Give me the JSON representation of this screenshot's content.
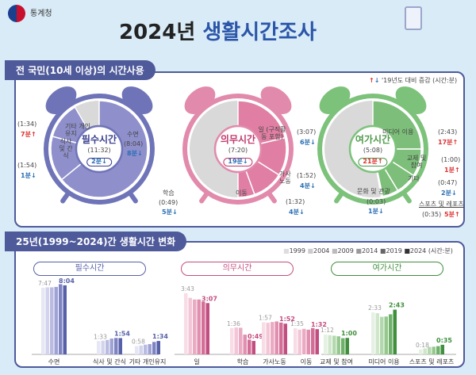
{
  "header": {
    "org": "통계청",
    "title_year": "2024년",
    "title_main": "생활시간조사"
  },
  "section1": {
    "title": "전 국민(10세 이상)의 시간사용",
    "legend": "'19년도 대비 증감 (시간:분)"
  },
  "colors": {
    "essential": "#8f8fcc",
    "obligatory": "#e07fa3",
    "leisure": "#7dbf7a",
    "rest": "#d9d9d9",
    "up": "#dd3333",
    "down": "#2a6fb5"
  },
  "clocks": [
    {
      "name": "필수시간",
      "total": "(11:32)",
      "change": "2분",
      "dir": "down",
      "items": [
        {
          "label": "수면",
          "time": "(8:04)",
          "change": "8분",
          "dir": "down",
          "minutes": 484
        },
        {
          "label": "식사 및 간식",
          "time": "(1:54)",
          "change": "1분",
          "dir": "down",
          "minutes": 114
        },
        {
          "label": "기타 개인유지",
          "time": "(1:34)",
          "change": "7분",
          "dir": "up",
          "minutes": 94
        }
      ]
    },
    {
      "name": "의무시간",
      "total": "(7:20)",
      "change": "19분",
      "dir": "down",
      "items": [
        {
          "label": "일 (구직활동 포함)",
          "time": "(3:07)",
          "change": "6분",
          "dir": "down",
          "minutes": 187
        },
        {
          "label": "가사 노동",
          "time": "(1:52)",
          "change": "4분",
          "dir": "down",
          "minutes": 112
        },
        {
          "label": "이동",
          "time": "(1:32)",
          "change": "4분",
          "dir": "down",
          "minutes": 92
        },
        {
          "label": "학습",
          "time": "(0:49)",
          "change": "5분",
          "dir": "down",
          "minutes": 49
        }
      ]
    },
    {
      "name": "여가시간",
      "total": "(5:08)",
      "change": "21분",
      "dir": "up",
      "items": [
        {
          "label": "미디어 이용",
          "time": "(2:43)",
          "change": "17분",
          "dir": "up",
          "minutes": 163
        },
        {
          "label": "교제 및 참여",
          "time": "(1:00)",
          "change": "1분",
          "dir": "up",
          "minutes": 60
        },
        {
          "label": "기타",
          "time": "(0:47)",
          "change": "2분",
          "dir": "down",
          "minutes": 47
        },
        {
          "label": "스포츠 및 레포츠",
          "time": "(0:35)",
          "change": "5분",
          "dir": "up",
          "minutes": 35
        },
        {
          "label": "문화 및 관광",
          "time": "(0:03)",
          "change": "1분",
          "dir": "down",
          "minutes": 3
        }
      ]
    }
  ],
  "section2": {
    "title": "25년(1999~2024)간 생활시간 변화",
    "unit": "(시간:분)"
  },
  "chart_data": {
    "type": "bar",
    "years": [
      "1999",
      "2004",
      "2009",
      "2014",
      "2019",
      "2024"
    ],
    "unit": "minutes",
    "groups": [
      {
        "title": "필수시간",
        "categories": [
          {
            "label": "수면",
            "values": [
              467,
              470,
              470,
              473,
              492,
              484
            ],
            "first_label": "7:47",
            "last_label": "8:04"
          },
          {
            "label": "식사 및 간식",
            "values": [
              93,
              96,
              101,
              111,
              115,
              114
            ],
            "first_label": "1:33",
            "last_label": "1:54"
          },
          {
            "label": "기타 개인유지",
            "values": [
              58,
              62,
              68,
              72,
              87,
              94
            ],
            "first_label": "0:58",
            "last_label": "1:34"
          }
        ]
      },
      {
        "title": "의무시간",
        "categories": [
          {
            "label": "일",
            "values": [
              223,
              206,
              200,
              200,
              193,
              187
            ],
            "first_label": "3:43",
            "last_label": "3:07"
          },
          {
            "label": "학습",
            "values": [
              96,
              98,
              97,
              72,
              54,
              49
            ],
            "first_label": "1:36",
            "last_label": "0:49"
          },
          {
            "label": "가사노동",
            "values": [
              117,
              115,
              118,
              120,
              116,
              112
            ],
            "first_label": "1:57",
            "last_label": "1:52"
          },
          {
            "label": "이동",
            "values": [
              95,
              90,
              93,
              90,
              96,
              92
            ],
            "first_label": "1:35",
            "last_label": "1:32"
          }
        ]
      },
      {
        "title": "여가시간",
        "categories": [
          {
            "label": "교제 및 참여",
            "values": [
              72,
              70,
              68,
              66,
              59,
              60
            ],
            "first_label": "1:12",
            "last_label": "1:00"
          },
          {
            "label": "미디어 이용",
            "values": [
              153,
              150,
              137,
              138,
              146,
              163
            ],
            "first_label": "2:33",
            "last_label": "2:43"
          },
          {
            "label": "스포츠 및 레포츠",
            "values": [
              18,
              22,
              27,
              28,
              30,
              35
            ],
            "first_label": "0:18",
            "last_label": "0:35"
          }
        ]
      }
    ],
    "palettes": [
      [
        "#e6e6f4",
        "#d2d3ec",
        "#b9bbe0",
        "#9fa3d4",
        "#7e84c2",
        "#5761a8"
      ],
      [
        "#f8dde7",
        "#f2c6d6",
        "#eaaac2",
        "#e08fae",
        "#d36f97",
        "#c24e80"
      ],
      [
        "#e5f1e3",
        "#cfe6cb",
        "#b3d8ae",
        "#95c78f",
        "#6fb06a",
        "#3f8f3c"
      ]
    ]
  }
}
